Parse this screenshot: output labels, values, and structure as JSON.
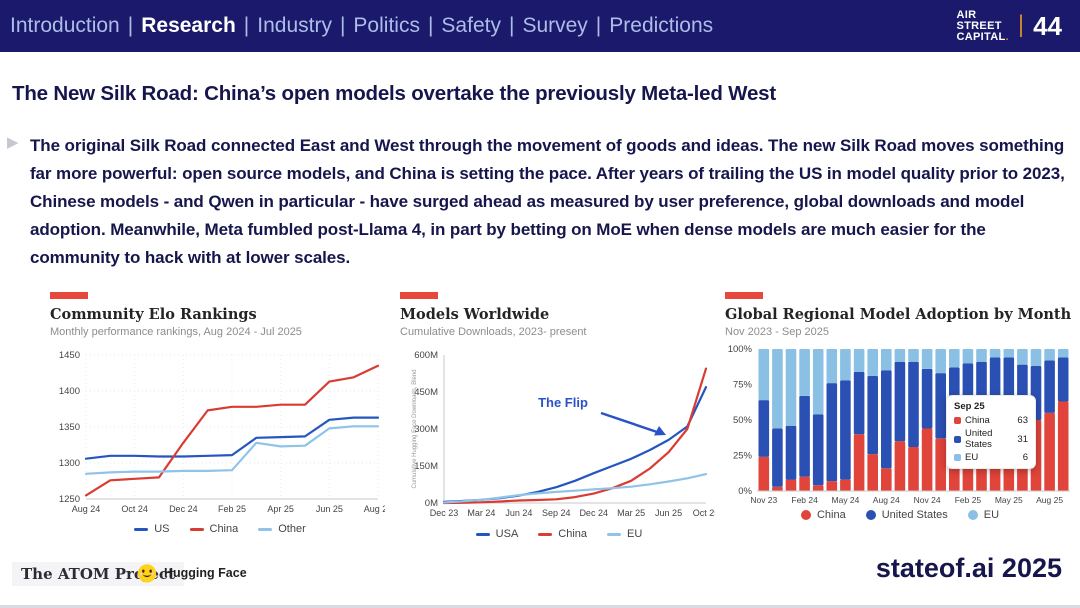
{
  "nav": {
    "items": [
      {
        "label": "Introduction",
        "active": false
      },
      {
        "label": "Research",
        "active": true
      },
      {
        "label": "Industry",
        "active": false
      },
      {
        "label": "Politics",
        "active": false
      },
      {
        "label": "Safety",
        "active": false
      },
      {
        "label": "Survey",
        "active": false
      },
      {
        "label": "Predictions",
        "active": false
      }
    ],
    "separator": "|",
    "logo_lines": [
      "AIR",
      "STREET",
      "CAPITAL"
    ],
    "logo_dot": ".",
    "page_number": "44",
    "colors": {
      "bar": "#1a196b",
      "link": "#aebce8",
      "active": "#ffffff",
      "gold": "#c9872b"
    }
  },
  "slide": {
    "title": "The New Silk Road: China’s open models overtake the previously Meta-led West",
    "body": "The original Silk Road connected East and West through the movement of goods and ideas. The new Silk Road moves something far more powerful: open source models, and China is setting the pace. After years of trailing the US in model quality prior to 2023, Chinese models - and Qwen in particular - have surged ahead as measured by user preference, global downloads and model adoption. Meanwhile, Meta fumbled post-Llama 4, in part by betting on MoE when dense models are much easier for the community to hack with at lower scales."
  },
  "footer": {
    "atom_label": "The ATOM Project",
    "huggingface_label": "Hugging Face",
    "brand": "stateof.ai 2025"
  },
  "chart_data": [
    {
      "type": "line",
      "title": "Community Elo Rankings",
      "subtitle": "Monthly performance rankings, Aug 2024 - Jul 2025",
      "x_tick_labels": [
        "Aug 24",
        "Oct 24",
        "Dec 24",
        "Feb 25",
        "Apr 25",
        "Jun 25",
        "Aug 25"
      ],
      "y_ticks": [
        1250,
        1300,
        1350,
        1400,
        1450
      ],
      "ylim": [
        1250,
        1450
      ],
      "grid": true,
      "legend_position": "bottom",
      "legend_marker": "dash",
      "xlabel": "",
      "ylabel": "",
      "categories": [
        "Aug 24",
        "Sep 24",
        "Oct 24",
        "Nov 24",
        "Dec 24",
        "Jan 25",
        "Feb 25",
        "Mar 25",
        "Apr 25",
        "May 25",
        "Jun 25",
        "Jul 25",
        "Aug 25"
      ],
      "series": [
        {
          "name": "US",
          "color": "#2456c0",
          "values": [
            1306,
            1310,
            1310,
            1309,
            1309,
            1310,
            1311,
            1335,
            1336,
            1337,
            1360,
            1363,
            1363
          ]
        },
        {
          "name": "China",
          "color": "#d93c32",
          "values": [
            1255,
            1276,
            1278,
            1280,
            1328,
            1373,
            1378,
            1378,
            1381,
            1381,
            1413,
            1419,
            1435
          ]
        },
        {
          "name": "Other",
          "color": "#8fc3e8",
          "values": [
            1285,
            1287,
            1288,
            1288,
            1289,
            1289,
            1290,
            1328,
            1323,
            1324,
            1348,
            1351,
            1351
          ]
        }
      ]
    },
    {
      "type": "line",
      "title": "Models Worldwide",
      "subtitle": "Cumulative Downloads, 2023- present",
      "ylabel": "Cumulative Hugging Face Downloads, Blend",
      "x_tick_labels": [
        "Dec 23",
        "Mar 24",
        "Jun 24",
        "Sep 24",
        "Dec 24",
        "Mar 25",
        "Jun 25",
        "Oct 25"
      ],
      "y_tick_labels": [
        "0M",
        "150M",
        "300M",
        "450M",
        "600M"
      ],
      "y_ticks": [
        0,
        150,
        300,
        450,
        600
      ],
      "ylim": [
        0,
        600
      ],
      "grid": false,
      "legend_position": "bottom",
      "legend_marker": "dash",
      "annotation": {
        "text": "The Flip",
        "color": "#2a52c8"
      },
      "series": [
        {
          "name": "USA",
          "color": "#2456c0",
          "points": [
            [
              0,
              5
            ],
            [
              0.5,
              8
            ],
            [
              1,
              13
            ],
            [
              1.5,
              20
            ],
            [
              2,
              30
            ],
            [
              2.5,
              45
            ],
            [
              3,
              64
            ],
            [
              3.5,
              90
            ],
            [
              4,
              121
            ],
            [
              4.5,
              150
            ],
            [
              5,
              179
            ],
            [
              5.5,
              215
            ],
            [
              6,
              256
            ],
            [
              6.5,
              310
            ],
            [
              7,
              470
            ]
          ]
        },
        {
          "name": "China",
          "color": "#d93c32",
          "points": [
            [
              0,
              0
            ],
            [
              0.5,
              1
            ],
            [
              1,
              3
            ],
            [
              1.5,
              6
            ],
            [
              2,
              10
            ],
            [
              2.5,
              12
            ],
            [
              3,
              15
            ],
            [
              3.5,
              24
            ],
            [
              4,
              38
            ],
            [
              4.5,
              60
            ],
            [
              5,
              90
            ],
            [
              5.5,
              140
            ],
            [
              6,
              206
            ],
            [
              6.5,
              300
            ],
            [
              7,
              545
            ]
          ]
        },
        {
          "name": "EU",
          "color": "#8fc3e8",
          "points": [
            [
              0,
              2
            ],
            [
              0.5,
              7
            ],
            [
              1,
              13
            ],
            [
              1.5,
              22
            ],
            [
              2,
              32
            ],
            [
              2.5,
              39
            ],
            [
              3,
              45
            ],
            [
              3.5,
              50
            ],
            [
              4,
              55
            ],
            [
              4.5,
              60
            ],
            [
              5,
              66
            ],
            [
              5.5,
              76
            ],
            [
              6,
              87
            ],
            [
              6.5,
              100
            ],
            [
              7,
              117
            ]
          ]
        }
      ]
    },
    {
      "type": "stacked_bar",
      "title": "Global Regional Model Adoption by Month",
      "subtitle": "Nov 2023 - Sep 2025",
      "y_tick_labels": [
        "0%",
        "25%",
        "50%",
        "75%",
        "100%"
      ],
      "y_ticks": [
        0,
        25,
        50,
        75,
        100
      ],
      "ylim": [
        0,
        100
      ],
      "x_tick_labels": [
        "Nov 23",
        "Feb 24",
        "May 24",
        "Aug 24",
        "Nov 24",
        "Feb 25",
        "May 25",
        "Aug 25"
      ],
      "x_tick_every": 3,
      "legend_position": "bottom",
      "legend_marker": "circle",
      "categories": [
        "Nov 23",
        "Dec 23",
        "Jan 24",
        "Feb 24",
        "Mar 24",
        "Apr 24",
        "May 24",
        "Jun 24",
        "Jul 24",
        "Aug 24",
        "Sep 24",
        "Oct 24",
        "Nov 24",
        "Dec 24",
        "Jan 25",
        "Feb 25",
        "Mar 25",
        "Apr 25",
        "May 25",
        "Jun 25",
        "Jul 25",
        "Aug 25",
        "Sep 25"
      ],
      "series": [
        {
          "name": "China",
          "color": "#e0443a",
          "values": [
            24,
            3,
            8,
            10,
            4,
            7,
            8,
            40,
            26,
            16,
            35,
            31,
            44,
            37,
            49,
            52,
            50,
            55,
            50,
            48,
            50,
            55,
            63
          ]
        },
        {
          "name": "United States",
          "color": "#2b50b4",
          "values": [
            40,
            41,
            38,
            57,
            50,
            69,
            70,
            44,
            55,
            69,
            56,
            60,
            42,
            46,
            38,
            38,
            41,
            39,
            44,
            41,
            38,
            37,
            31
          ]
        },
        {
          "name": "EU",
          "color": "#8ac0e4",
          "values": [
            36,
            56,
            54,
            33,
            46,
            24,
            22,
            16,
            19,
            15,
            9,
            9,
            14,
            17,
            13,
            10,
            9,
            6,
            6,
            11,
            12,
            8,
            6
          ]
        }
      ],
      "tooltip": {
        "title": "Sep 25",
        "rows": [
          {
            "label": "China",
            "value": "63",
            "color": "#e0443a"
          },
          {
            "label": "United States",
            "value": "31",
            "color": "#2b50b4"
          },
          {
            "label": "EU",
            "value": "6",
            "color": "#8ac0e4"
          }
        ]
      }
    }
  ]
}
